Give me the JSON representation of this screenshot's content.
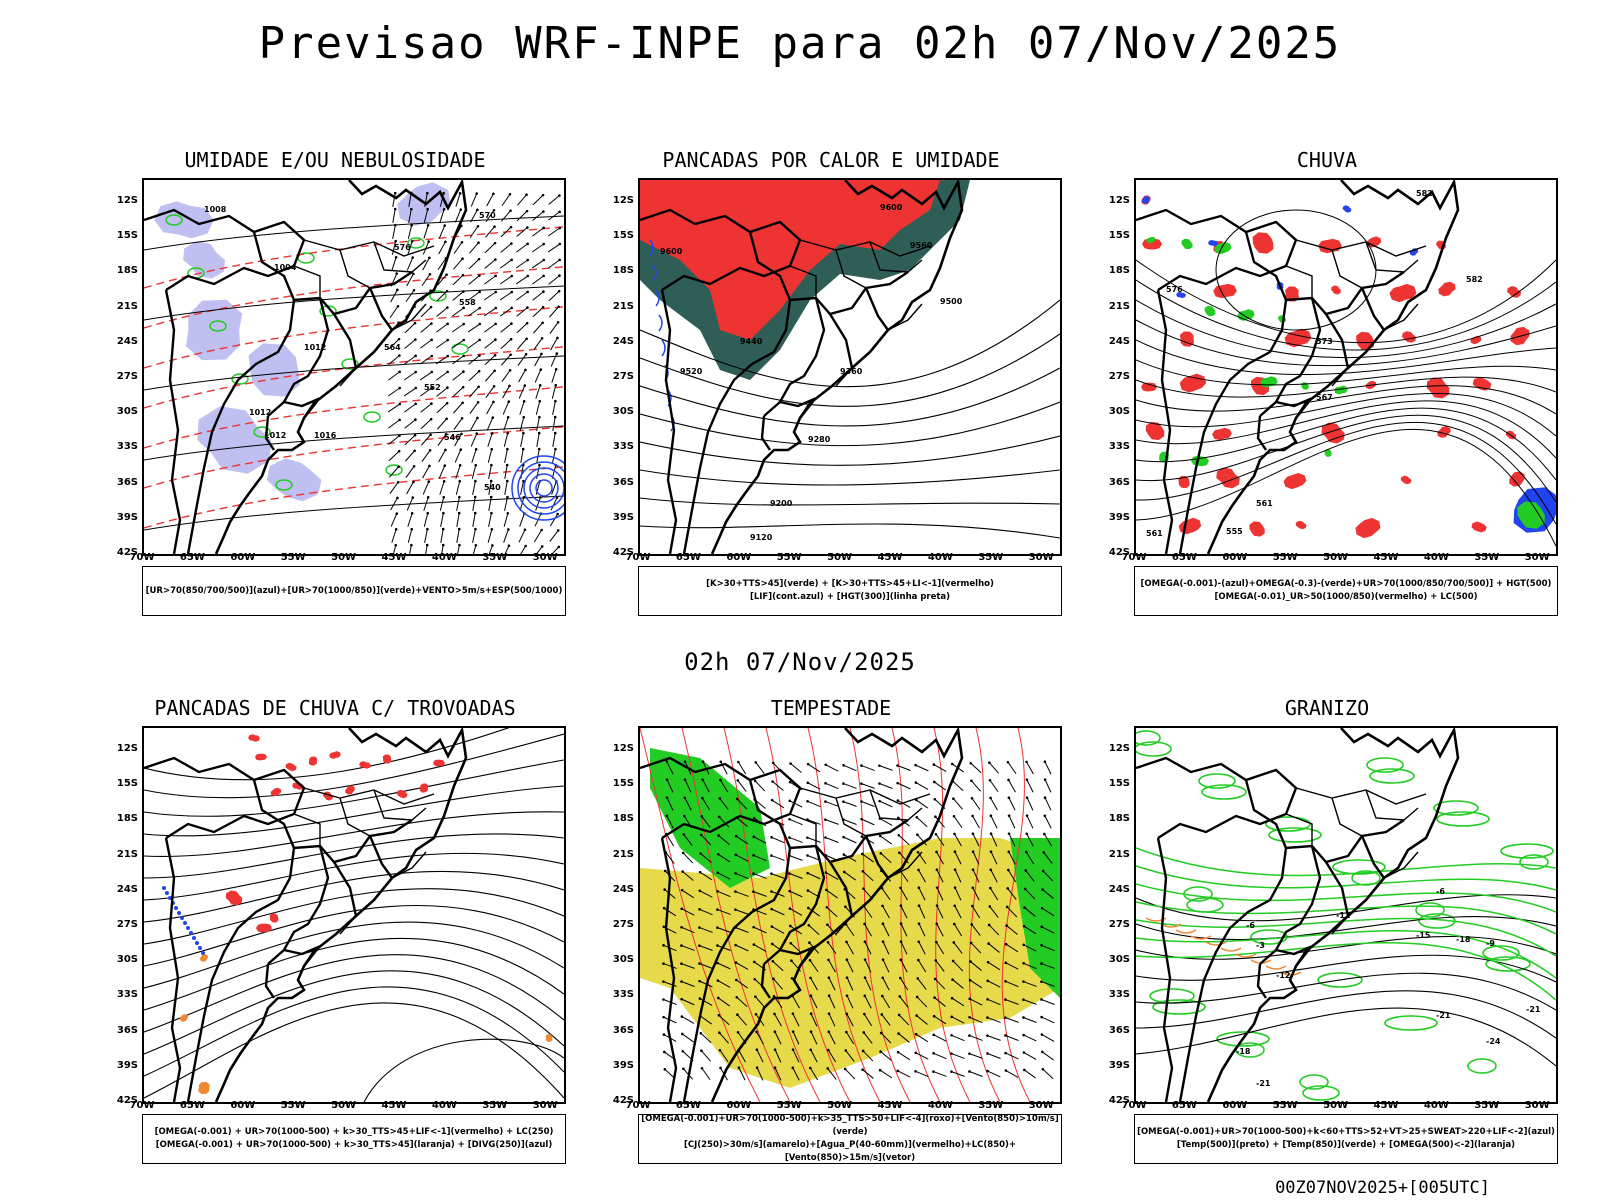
{
  "header": {
    "title": "Previsao WRF-INPE  para 02h 07/Nov/2025",
    "mid_time": "02h 07/Nov/2025",
    "run_stamp": "00Z07NOV2025+[005UTC]"
  },
  "axes": {
    "lat_labels": [
      "12S",
      "15S",
      "18S",
      "21S",
      "24S",
      "27S",
      "30S",
      "33S",
      "36S",
      "39S",
      "42S"
    ],
    "lon_labels": [
      "70W",
      "65W",
      "60W",
      "55W",
      "50W",
      "45W",
      "40W",
      "35W",
      "30W"
    ]
  },
  "colors": {
    "red": "#ee3333",
    "green": "#22cc22",
    "blue": "#2244ee",
    "lavender": "#b8b8f0",
    "darkgreen": "#2e5e56",
    "yellow": "#e6d94a",
    "orange": "#ee8833"
  },
  "panels": [
    {
      "title": "UMIDADE E/OU NEBULOSIDADE",
      "legend": [
        "[UR>70(850/700/500)](azul)+[UR>70(1000/850)](verde)+VENTO>5m/s+ESP(500/1000)"
      ],
      "contour_labels": [
        "1008",
        "1004",
        "1012",
        "1016",
        "1012",
        "1012",
        "576",
        "570",
        "564",
        "558",
        "552",
        "546",
        "540"
      ]
    },
    {
      "title": "PANCADAS POR CALOR E UMIDADE",
      "legend": [
        "[K>30+TTS>45](verde) + [K>30+TTS>45+LI<-1](vermelho)",
        "[LIF](cont.azul) + [HGT(300)](linha preta)"
      ],
      "contour_labels": [
        "9600",
        "9600",
        "9560",
        "9500",
        "9440",
        "9520",
        "9360",
        "9280",
        "9200",
        "9120"
      ]
    },
    {
      "title": "CHUVA",
      "legend": [
        "[OMEGA(-0.001)-(azul)+OMEGA(-0.3)-(verde)+UR>70(1000/850/700/500)] + HGT(500)",
        "[OMEGA(-0.01)_UR>50(1000/850)(vermelho) + LC(500)"
      ],
      "contour_labels": [
        "582",
        "582",
        "576",
        "573",
        "567",
        "561",
        "555",
        "561"
      ]
    },
    {
      "title": "PANCADAS DE CHUVA C/ TROVOADAS",
      "legend": [
        "[OMEGA(-0.001) + UR>70(1000-500) + k>30_TTS>45+LIF<-1](vermelho) + LC(250)",
        "[OMEGA(-0.001) + UR>70(1000-500) + k>30_TTS>45](laranja) + [DIVG(250)](azul)"
      ],
      "contour_labels": []
    },
    {
      "title": "TEMPESTADE",
      "legend": [
        "[OMEGA(-0.001)+UR>70(1000-500)+k>35_TTS>50+LIF<-4](roxo)+[Vento(850)>10m/s](verde)",
        "[CJ(250)>30m/s](amarelo)+[Agua_P(40-60mm)](vermelho)+LC(850)+[Vento(850)>15m/s](vetor)"
      ],
      "contour_labels": []
    },
    {
      "title": "GRANIZO",
      "legend": [
        "[OMEGA(-0.001)+UR>70(1000-500)+k<60+TTS>52+VT>25+SWEAT>220+LIF<-2](azul)",
        "[Temp(500)](preto) + [Temp(850)](verde) + [OMEGA(500)<-2](laranja)"
      ],
      "contour_labels": [
        "-6",
        "-12",
        "-12",
        "-15",
        "-18",
        "-21",
        "-21",
        "-24",
        "-18",
        "-21",
        "-6",
        "-9",
        "-3"
      ]
    }
  ]
}
